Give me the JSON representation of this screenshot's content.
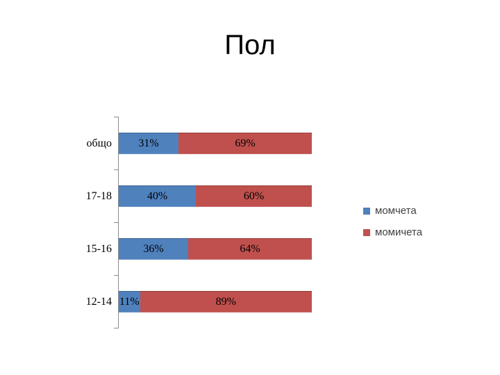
{
  "slide": {
    "title": "Пол"
  },
  "chart_data": {
    "type": "bar",
    "orientation": "horizontal",
    "stacked": true,
    "title": "Пол",
    "categories": [
      "общо",
      "17-18",
      "15-16",
      "12-14"
    ],
    "series": [
      {
        "name": "момчета",
        "color": "#4F81BD",
        "values": [
          31,
          40,
          36,
          11
        ],
        "labels": [
          "31%",
          "40%",
          "36%",
          "11%"
        ]
      },
      {
        "name": "момичета",
        "color": "#C0504D",
        "values": [
          69,
          60,
          64,
          89
        ],
        "labels": [
          "69%",
          "60%",
          "64%",
          "89%"
        ]
      }
    ],
    "xlim": [
      0,
      100
    ],
    "value_format": "percent",
    "legend_position": "right",
    "grid": false,
    "axis_color": "#8c8c8c",
    "label_color": "#000000",
    "legend_text_color": "#404040"
  }
}
